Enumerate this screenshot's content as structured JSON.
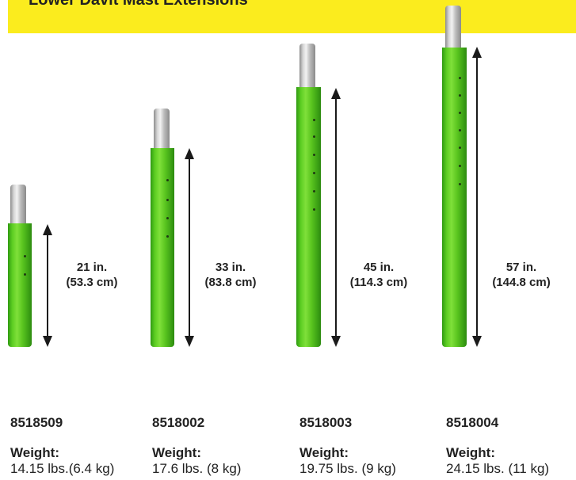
{
  "banner": {
    "title": "Lower Davit Mast Extensions",
    "color": "#fbec1e"
  },
  "tube_color": "#5ccd22",
  "products": [
    {
      "sku": "8518509",
      "weight_label": "Weight:",
      "weight": "14.15 lbs.(6.4 kg)",
      "length_in": "21 in.",
      "length_cm": "(53.3 cm)"
    },
    {
      "sku": "8518002",
      "weight_label": "Weight:",
      "weight": "17.6 lbs. (8 kg)",
      "length_in": "33 in.",
      "length_cm": "(83.8 cm)"
    },
    {
      "sku": "8518003",
      "weight_label": "Weight:",
      "weight": "19.75 lbs. (9 kg)",
      "length_in": "45 in.",
      "length_cm": "(114.3 cm)"
    },
    {
      "sku": "8518004",
      "weight_label": "Weight:",
      "weight": "24.15 lbs. (11 kg)",
      "length_in": "57 in.",
      "length_cm": "(144.8 cm)"
    }
  ]
}
